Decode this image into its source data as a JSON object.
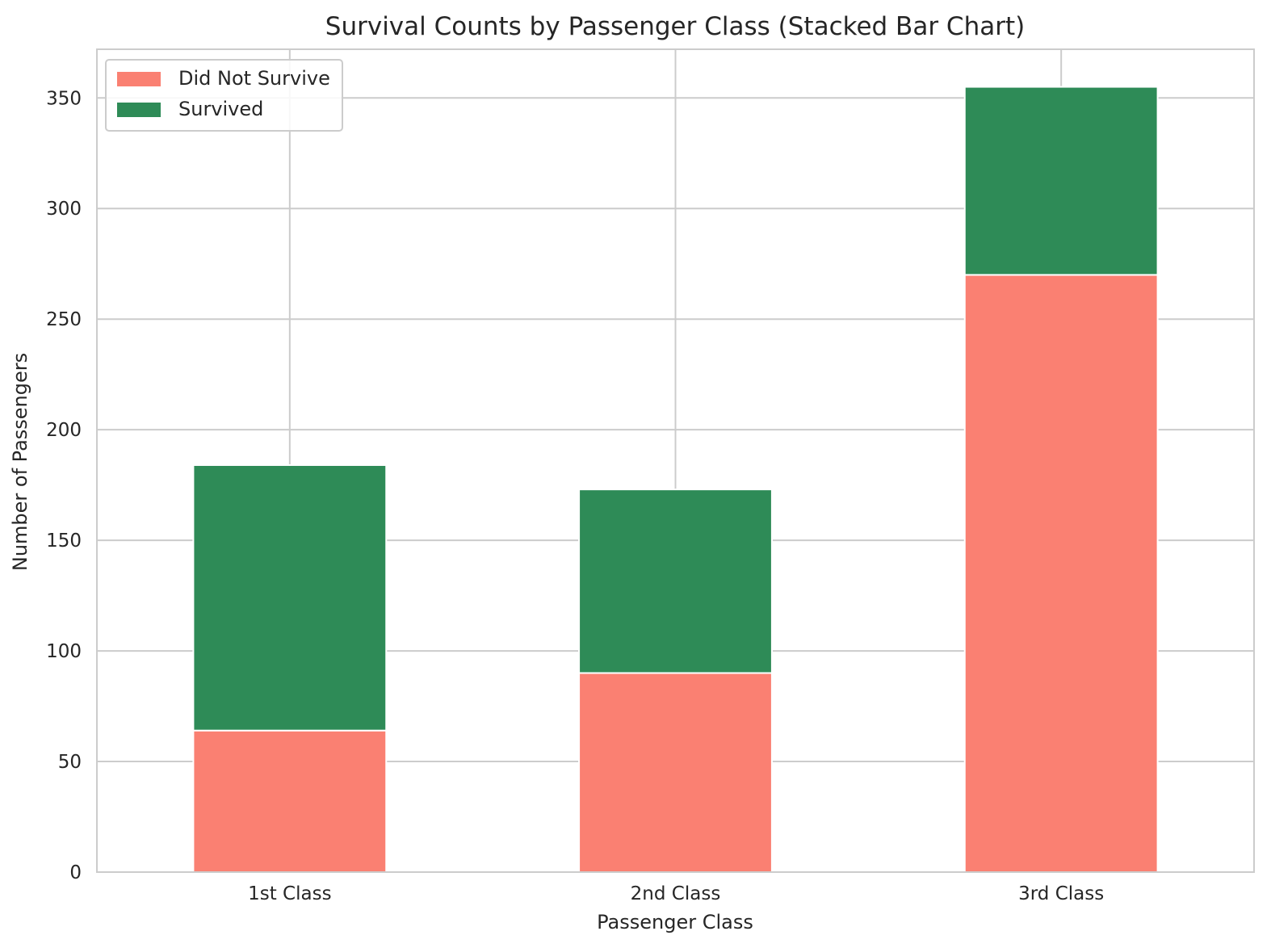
{
  "chart_data": {
    "type": "bar",
    "stacked": true,
    "title": "Survival Counts by Passenger Class (Stacked Bar Chart)",
    "xlabel": "Passenger Class",
    "ylabel": "Number of Passengers",
    "categories": [
      "1st Class",
      "2nd Class",
      "3rd Class"
    ],
    "series": [
      {
        "name": "Did Not Survive",
        "color": "#FA8072",
        "values": [
          64,
          90,
          270
        ]
      },
      {
        "name": "Survived",
        "color": "#2E8B57",
        "values": [
          120,
          83,
          85
        ]
      }
    ],
    "ylim": [
      0,
      372
    ],
    "yticks": [
      0,
      50,
      100,
      150,
      200,
      250,
      300,
      350
    ],
    "grid": true,
    "legend_position": "top-left"
  }
}
